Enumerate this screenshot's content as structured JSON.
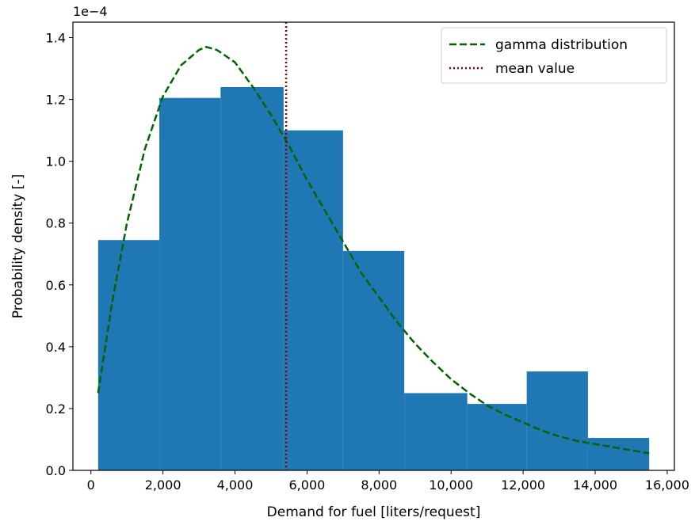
{
  "chart_data": {
    "type": "bar",
    "xlabel": "Demand for fuel [liters/request]",
    "ylabel": "Probability density [-]",
    "y_offset_text": "1e−4",
    "xlim": [
      -500,
      16200
    ],
    "ylim": [
      0,
      1.45
    ],
    "x_ticks": [
      0,
      2000,
      4000,
      6000,
      8000,
      10000,
      12000,
      14000,
      16000
    ],
    "x_tick_labels": [
      "0",
      "2,000",
      "4,000",
      "6,000",
      "8,000",
      "10,000",
      "12,000",
      "14,000",
      "16,000"
    ],
    "y_ticks": [
      0.0,
      0.2,
      0.4,
      0.6,
      0.8,
      1.0,
      1.2,
      1.4
    ],
    "y_tick_labels": [
      "0.0",
      "0.2",
      "0.4",
      "0.6",
      "0.8",
      "1.0",
      "1.2",
      "1.4"
    ],
    "grid": false,
    "legend_position": "top-right",
    "histogram": {
      "bin_edges": [
        200,
        1900,
        3600,
        5350,
        7000,
        8700,
        10450,
        12100,
        13800,
        15500
      ],
      "values": [
        0.745,
        1.205,
        1.24,
        1.1,
        0.71,
        0.25,
        0.215,
        0.32,
        0.105
      ],
      "color": "#1f77b4"
    },
    "series": [
      {
        "name": "gamma distribution",
        "style": "dashed",
        "color": "#006400",
        "x": [
          200,
          600,
          1000,
          1500,
          2000,
          2500,
          3000,
          3200,
          3500,
          4000,
          4500,
          5000,
          5500,
          6000,
          6500,
          7000,
          7500,
          8000,
          8500,
          9000,
          9500,
          10000,
          10500,
          11000,
          11500,
          12000,
          12500,
          13000,
          13500,
          14000,
          14500,
          15000,
          15500
        ],
        "y": [
          0.25,
          0.55,
          0.8,
          1.04,
          1.21,
          1.31,
          1.36,
          1.37,
          1.36,
          1.32,
          1.24,
          1.15,
          1.05,
          0.94,
          0.84,
          0.74,
          0.64,
          0.56,
          0.48,
          0.41,
          0.35,
          0.295,
          0.25,
          0.21,
          0.18,
          0.155,
          0.13,
          0.11,
          0.095,
          0.085,
          0.075,
          0.065,
          0.055
        ]
      },
      {
        "name": "mean value",
        "style": "dotted",
        "color": "#8b0000",
        "x_value": 5420
      }
    ]
  }
}
